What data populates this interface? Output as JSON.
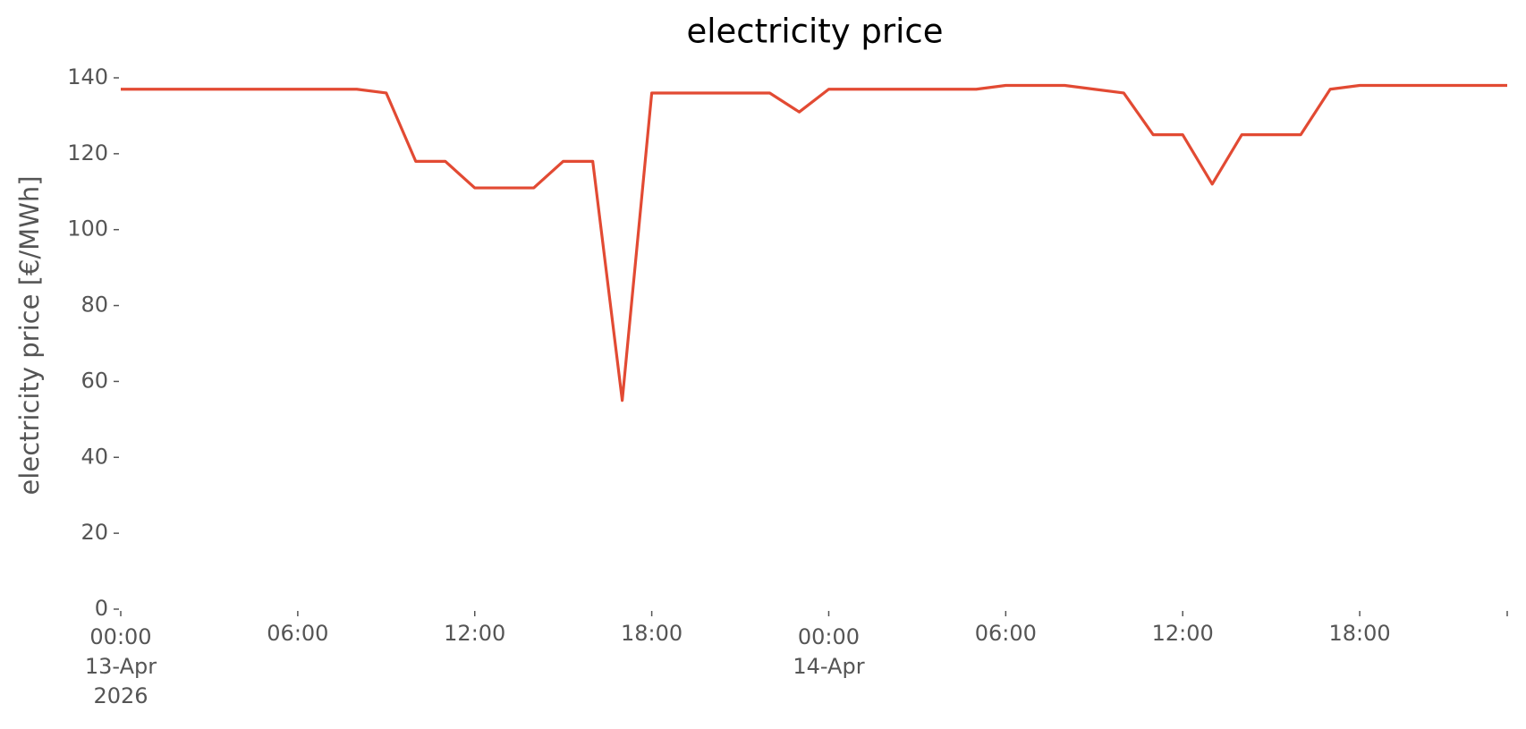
{
  "chart_data": {
    "type": "line",
    "title": "electricity price",
    "ylabel": "electricity price [€/MWh]",
    "x": [
      "2026-04-13T00:00",
      "2026-04-13T01:00",
      "2026-04-13T02:00",
      "2026-04-13T03:00",
      "2026-04-13T04:00",
      "2026-04-13T05:00",
      "2026-04-13T06:00",
      "2026-04-13T07:00",
      "2026-04-13T08:00",
      "2026-04-13T09:00",
      "2026-04-13T10:00",
      "2026-04-13T11:00",
      "2026-04-13T12:00",
      "2026-04-13T13:00",
      "2026-04-13T14:00",
      "2026-04-13T15:00",
      "2026-04-13T16:00",
      "2026-04-13T17:00",
      "2026-04-13T18:00",
      "2026-04-13T19:00",
      "2026-04-13T20:00",
      "2026-04-13T21:00",
      "2026-04-13T22:00",
      "2026-04-13T23:00",
      "2026-04-14T00:00",
      "2026-04-14T01:00",
      "2026-04-14T02:00",
      "2026-04-14T03:00",
      "2026-04-14T04:00",
      "2026-04-14T05:00",
      "2026-04-14T06:00",
      "2026-04-14T07:00",
      "2026-04-14T08:00",
      "2026-04-14T09:00",
      "2026-04-14T10:00",
      "2026-04-14T11:00",
      "2026-04-14T12:00",
      "2026-04-14T13:00",
      "2026-04-14T14:00",
      "2026-04-14T15:00",
      "2026-04-14T16:00",
      "2026-04-14T17:00",
      "2026-04-14T18:00",
      "2026-04-14T19:00",
      "2026-04-14T20:00",
      "2026-04-14T21:00",
      "2026-04-14T22:00",
      "2026-04-14T23:00"
    ],
    "series": [
      {
        "name": "electricity price",
        "color": "#e24a33",
        "values": [
          137,
          137,
          137,
          137,
          137,
          137,
          137,
          137,
          137,
          136,
          118,
          118,
          111,
          111,
          111,
          118,
          118,
          55,
          136,
          136,
          136,
          136,
          136,
          131,
          137,
          137,
          137,
          137,
          137,
          137,
          138,
          138,
          138,
          137,
          136,
          125,
          125,
          112,
          125,
          125,
          125,
          137,
          138,
          138,
          138,
          138,
          138,
          138
        ]
      }
    ],
    "xlim": [
      "2026-04-13T00:00",
      "2026-04-14T23:00"
    ],
    "xticks": [
      {
        "value": "2026-04-13T00:00",
        "label": "00:00\n13-Apr\n2026"
      },
      {
        "value": "2026-04-13T06:00",
        "label": "06:00"
      },
      {
        "value": "2026-04-13T12:00",
        "label": "12:00"
      },
      {
        "value": "2026-04-13T18:00",
        "label": "18:00"
      },
      {
        "value": "2026-04-14T00:00",
        "label": "00:00\n14-Apr"
      },
      {
        "value": "2026-04-14T06:00",
        "label": "06:00"
      },
      {
        "value": "2026-04-14T12:00",
        "label": "12:00"
      },
      {
        "value": "2026-04-14T18:00",
        "label": "18:00"
      },
      {
        "value": "2026-04-14T23:00",
        "label": null
      }
    ],
    "ylim": [
      0,
      140
    ],
    "yticks": [
      0,
      20,
      40,
      60,
      80,
      100,
      120,
      140
    ],
    "grid": false
  }
}
